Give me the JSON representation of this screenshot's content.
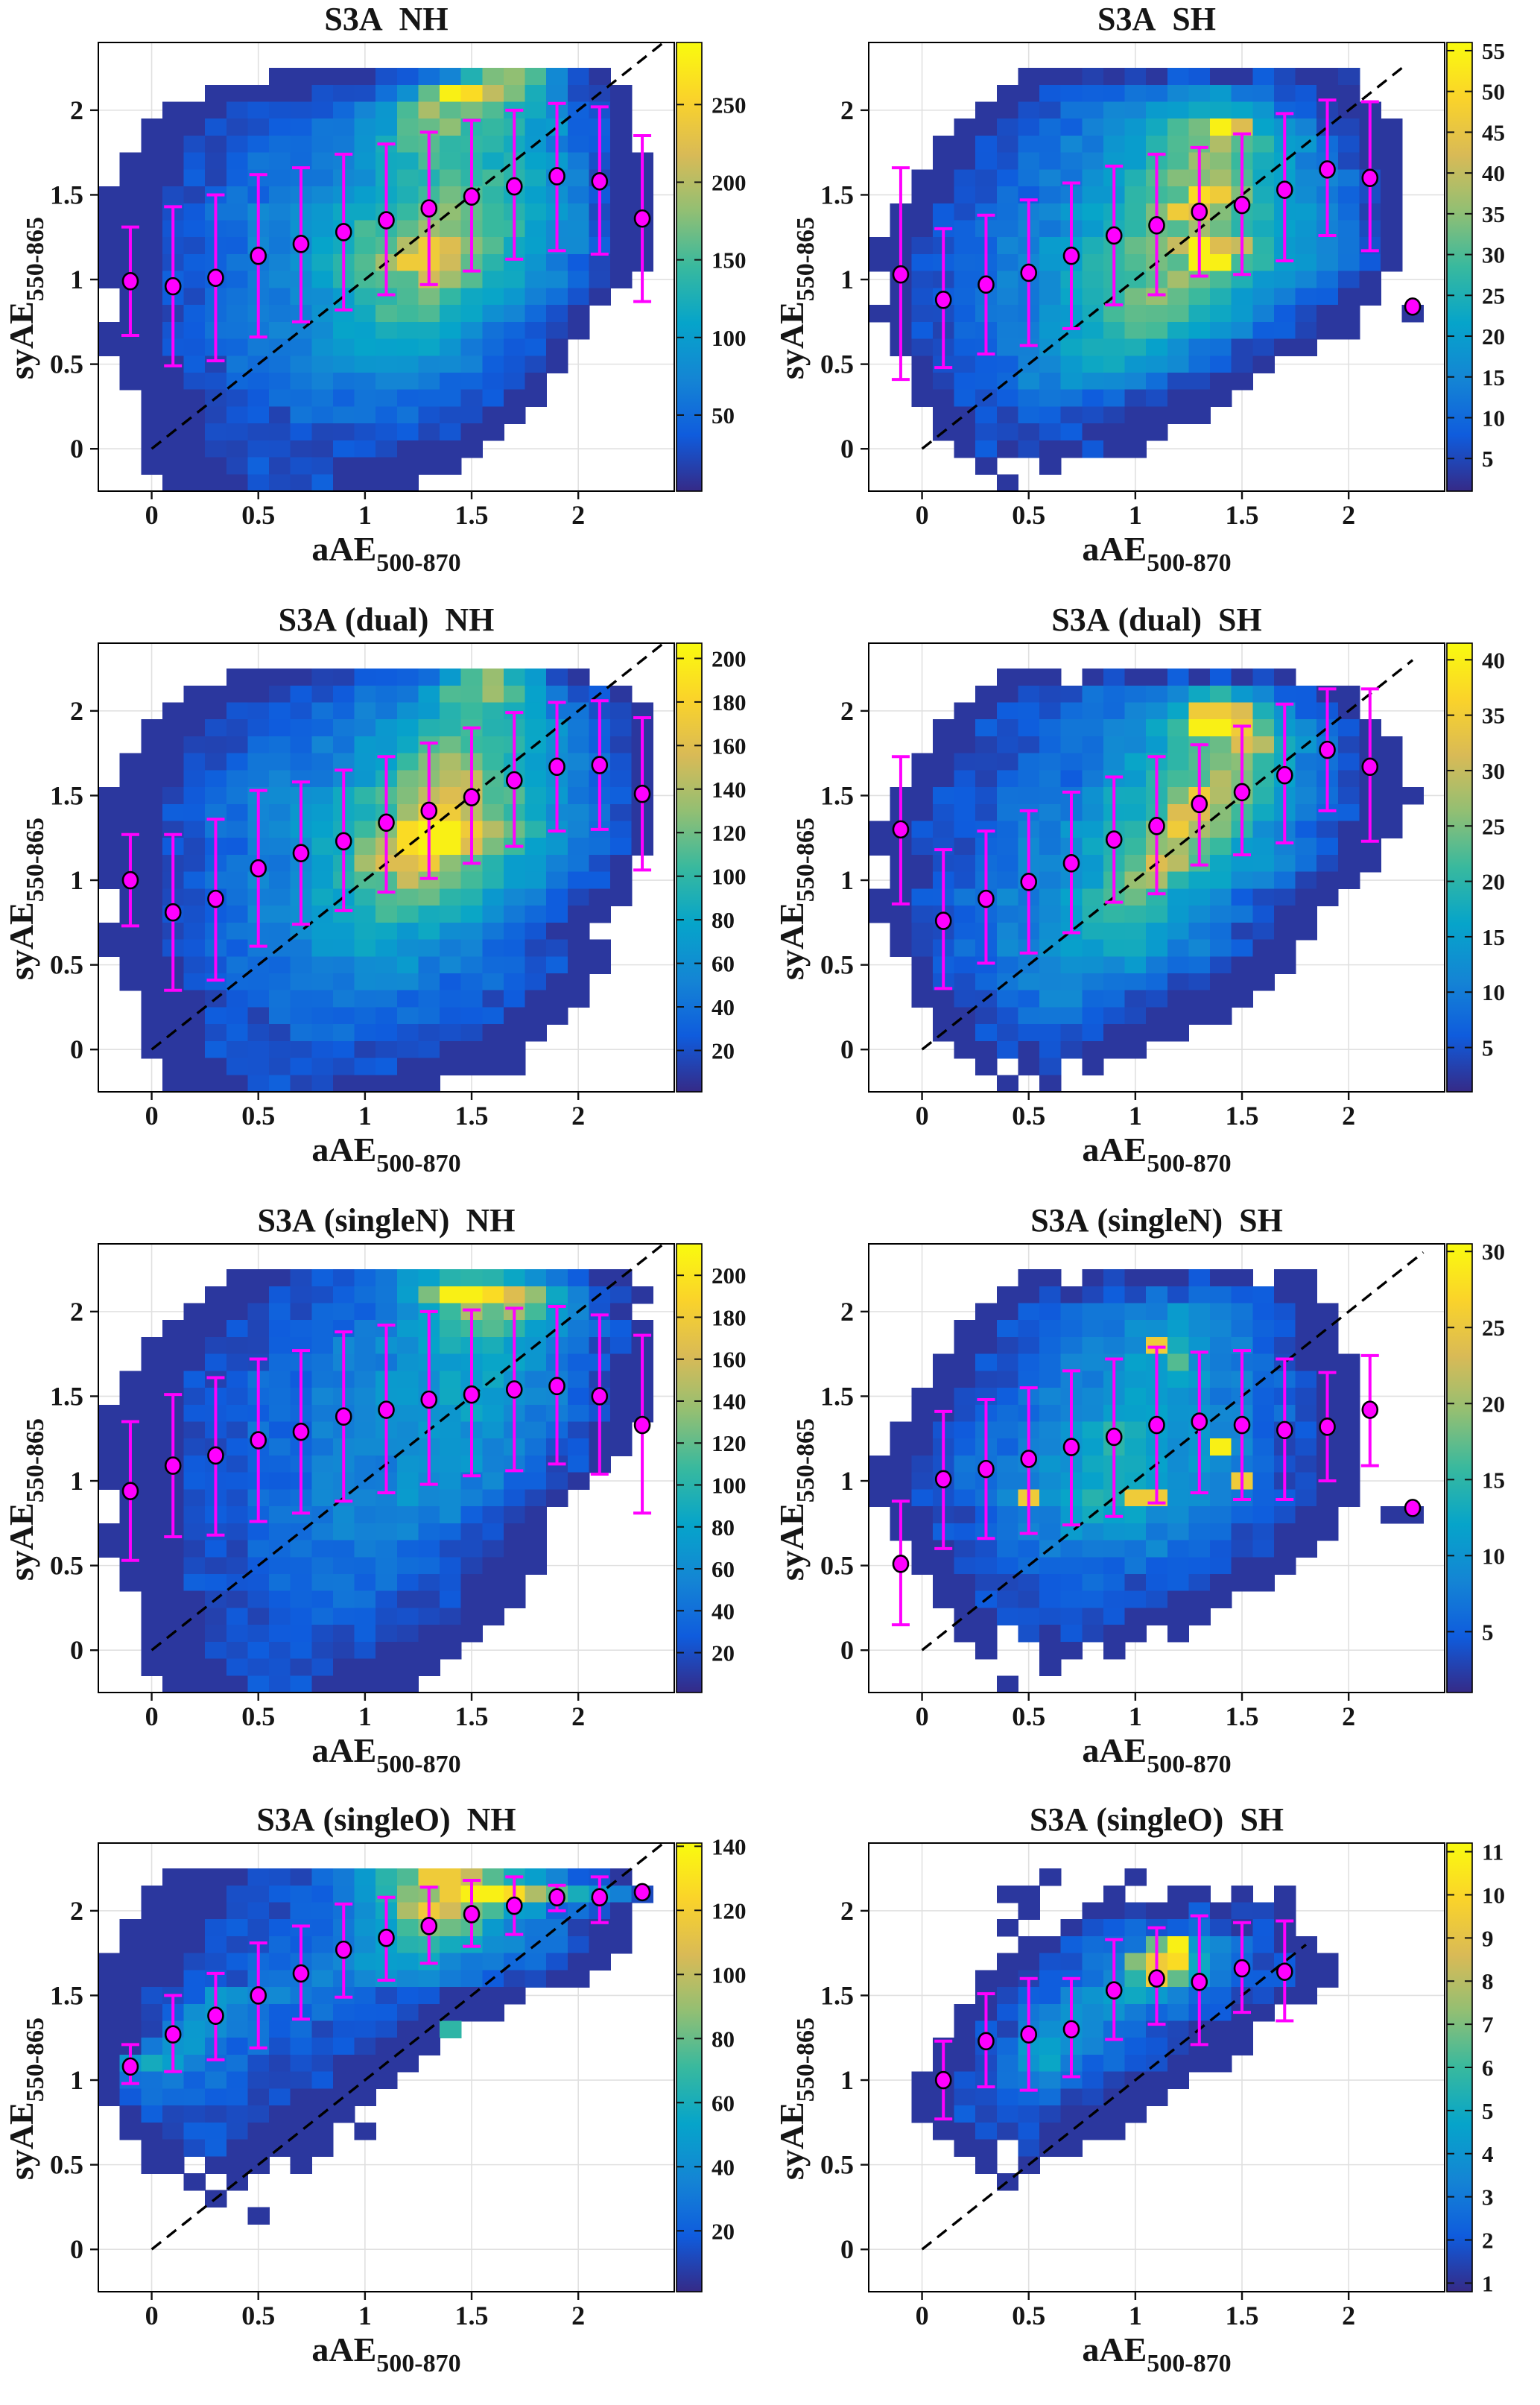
{
  "figure": {
    "background": "#ffffff",
    "xlabel": {
      "main": "aAE",
      "sub": "500-870"
    },
    "ylabel": {
      "main": "syAE",
      "sub": "550-865"
    },
    "xticks": [
      0,
      0.5,
      1,
      1.5,
      2
    ],
    "yticks": [
      0,
      0.5,
      1,
      1.5,
      2
    ],
    "xlim": [
      -0.25,
      2.45
    ],
    "ylim": [
      -0.25,
      2.4
    ],
    "bin_size": 0.1,
    "colormap": "parula",
    "colors": {
      "errorbar": "#ff00ff",
      "identity_line": "#000000",
      "grid_line": "#e0e0e0",
      "text": "#151515",
      "marker_edge": "#000000"
    }
  },
  "chart_data": [
    {
      "type": "heatmap",
      "title": "S3A  NH",
      "colorbar": {
        "vmin": 1,
        "vmax": 290,
        "ticks": [
          50,
          100,
          150,
          200,
          250
        ]
      },
      "grid_x0": -0.25,
      "grid_y_top": 2.25,
      "grid": [
        "........11111223479a8521...",
        ".....11111222359feba74221..",
        "...111222223468a998764321..",
        "..11122223335689a88765321..",
        "..11222233345789887764321..",
        ".1112223334456788877654211.",
        ".1112233344556778887654211.",
        "11122333445566789987654211.",
        "1112233445667789a987654211.",
        "111223344566889aa988654211.",
        "11122334456789bdca97654211.",
        "1112233445689bddb986543211.",
        "111223344567899ba87654321..",
        ".11223344456789987654321...",
        ".1122334445678887654321....",
        "11122334445667776543221....",
        "1112233444556666543221.....",
        ".111223334455555443221.....",
        ".11122333444444433221......",
        "..1112223333333332211......",
        "..111222233333322211.......",
        "..11122222222222211........",
        "..1112222222221111.........",
        "..111122222111111..........",
        "...111122221111............"
      ],
      "errorbar": {
        "x": [
          -0.1,
          0.1,
          0.3,
          0.5,
          0.7,
          0.9,
          1.1,
          1.3,
          1.5,
          1.7,
          1.9,
          2.1,
          2.3
        ],
        "y": [
          0.99,
          0.96,
          1.01,
          1.14,
          1.21,
          1.28,
          1.35,
          1.42,
          1.49,
          1.55,
          1.61,
          1.58,
          1.36
        ],
        "lo": [
          0.67,
          0.49,
          0.52,
          0.66,
          0.75,
          0.82,
          0.91,
          0.97,
          1.05,
          1.12,
          1.17,
          1.15,
          0.87
        ],
        "hi": [
          1.31,
          1.43,
          1.5,
          1.62,
          1.66,
          1.74,
          1.8,
          1.87,
          1.94,
          2.0,
          2.04,
          2.02,
          1.85
        ]
      },
      "identity_line": [
        0,
        2.4
      ]
    },
    {
      "type": "heatmap",
      "title": "S3A  SH",
      "colorbar": {
        "vmin": 1,
        "vmax": 56,
        "ticks": [
          5,
          10,
          15,
          20,
          25,
          30,
          35,
          40,
          45,
          50,
          55
        ]
      },
      "grid_x0": -0.25,
      "grid_y_top": 2.25,
      "grid": [
        ".......1112121221122112....",
        "......11223343455432211....",
        ".....1122334456776533211...",
        "....112233455689fc6542211..",
        "...1122334456789b98653211..",
        "...112233445678aa87643211..",
        "..11223344567899a97654321..",
        "..1122334456789ed97654321..",
        ".112233445678adc987654321..",
        ".11223344567899a987654321..",
        "1122334456789abfcb8654321..",
        "112233445678999ff87654321..",
        ".1223344567889a987654321...",
        ".122334456789a9876543211...",
        "11223344567899876543211..1.",
        ".1223344566788765432211....",
        ".12233445677765432211......",
        "..12233445665543221........",
        "..1223344554432211.........",
        "..112233443322111..........",
        "...1122332221111...........",
        "...11222221111.............",
        "....121211211..............",
        ".....1..1..................",
        "......1...................."
      ],
      "errorbar": {
        "x": [
          -0.1,
          0.1,
          0.3,
          0.5,
          0.7,
          0.9,
          1.1,
          1.3,
          1.5,
          1.7,
          1.9,
          2.1,
          2.3
        ],
        "y": [
          1.03,
          0.88,
          0.97,
          1.04,
          1.14,
          1.26,
          1.32,
          1.4,
          1.44,
          1.53,
          1.65,
          1.6,
          0.84
        ],
        "lo": [
          0.41,
          0.48,
          0.56,
          0.61,
          0.71,
          0.85,
          0.91,
          1.02,
          1.03,
          1.11,
          1.26,
          1.17,
          0.84
        ],
        "hi": [
          1.66,
          1.3,
          1.38,
          1.47,
          1.57,
          1.67,
          1.74,
          1.78,
          1.86,
          1.98,
          2.06,
          2.05,
          0.84
        ]
      },
      "identity_line": [
        0,
        2.25
      ]
    },
    {
      "type": "heatmap",
      "title": "S3A (dual)  NH",
      "colorbar": {
        "vmin": 1,
        "vmax": 207,
        "ticks": [
          20,
          40,
          60,
          80,
          100,
          120,
          140,
          160,
          180,
          200
        ]
      },
      "grid_x0": -0.25,
      "grid_y_top": 2.25,
      "grid": [
        "......111122223368a7521....",
        "....11112222334689a864221..",
        "...11122223344567887643221.",
        "..111222333445678877654321.",
        "..112223334456789887654321.",
        ".111222333445689a987654321.",
        ".11122334445679abb97654321.",
        "111223344556789bcb98654321.",
        "11122334455678addb98654321.",
        "1112233445678aeffdb9754321.",
        "1112233445679beffca8654321.",
        "111223344567accda97654321..",
        "11122334456789ba987654321..",
        ".112233445667899876543211..",
        ".11223344556788776543211...",
        "11122334455677665543211....",
        "111223344455665544332211...",
        ".11122333444555444332211...",
        ".1112233344444443332211....",
        "..111223333444333322111....",
        "..11122233333333222111.....",
        "..1112222333322222111......",
        "..111222222222221111.......",
        "...11122222222111111.......",
        "...1111222211111..........."
      ],
      "errorbar": {
        "x": [
          -0.1,
          0.1,
          0.3,
          0.5,
          0.7,
          0.9,
          1.1,
          1.3,
          1.5,
          1.7,
          1.9,
          2.1,
          2.3
        ],
        "y": [
          1.0,
          0.81,
          0.89,
          1.07,
          1.16,
          1.23,
          1.34,
          1.41,
          1.49,
          1.59,
          1.67,
          1.68,
          1.51
        ],
        "lo": [
          0.73,
          0.35,
          0.41,
          0.61,
          0.74,
          0.82,
          0.93,
          1.01,
          1.1,
          1.2,
          1.29,
          1.3,
          1.06
        ],
        "hi": [
          1.27,
          1.27,
          1.36,
          1.53,
          1.58,
          1.65,
          1.73,
          1.81,
          1.9,
          1.99,
          2.05,
          2.06,
          1.96
        ]
      },
      "identity_line": [
        0,
        2.4
      ]
    },
    {
      "type": "heatmap",
      "title": "S3A (dual)  SH",
      "colorbar": {
        "vmin": 1,
        "vmax": 41.5,
        "ticks": [
          5,
          10,
          15,
          20,
          25,
          30,
          35,
          40
        ]
      },
      "grid_x0": -0.25,
      "grid_y_top": 2.25,
      "grid": [
        "......111.1211212121.......",
        ".....112223334577542211....",
        "....11222333456ddc75321....",
        "...112223334568ffd864321...",
        "...11222333456789cb753211..",
        "..112223334567899a8643211..",
        "..11222333456789ba8643211..",
        ".1122233445678adb975432111.",
        ".1122233445678cca86543211..",
        "11222334456789da975432111..",
        "1122233445678ab986543211...",
        ".112233445679cb976543211...",
        ".11223344568ab876543211....",
        "1122334456899765432211.....",
        "112233445678876543211......",
        ".12233445677765432211......",
        ".1223344566665443211.......",
        "..122334455554332111.......",
        "..12233444443322111........",
        "..1122334433221111.........",
        "...11223333221111..........",
        "...112222221111............",
        "....112122111..............",
        ".....1.12.1................",
        "......1.1.................."
      ],
      "errorbar": {
        "x": [
          -0.1,
          0.1,
          0.3,
          0.5,
          0.7,
          0.9,
          1.1,
          1.3,
          1.5,
          1.7,
          1.9,
          2.1
        ],
        "y": [
          1.3,
          0.76,
          0.89,
          0.99,
          1.1,
          1.24,
          1.32,
          1.45,
          1.52,
          1.62,
          1.77,
          1.67
        ],
        "lo": [
          0.86,
          0.36,
          0.51,
          0.57,
          0.69,
          0.87,
          0.92,
          1.09,
          1.15,
          1.22,
          1.41,
          1.23
        ],
        "hi": [
          1.73,
          1.18,
          1.29,
          1.41,
          1.52,
          1.61,
          1.73,
          1.8,
          1.91,
          2.04,
          2.13,
          2.13
        ]
      },
      "identity_line": [
        0,
        2.3
      ]
    },
    {
      "type": "heatmap",
      "title": "S3A (singleN)  NH",
      "colorbar": {
        "vmin": 1,
        "vmax": 215,
        "ticks": [
          20,
          40,
          60,
          80,
          100,
          120,
          140,
          160,
          180,
          200
        ]
      },
      "grid_x0": -0.25,
      "grid_y_top": 2.25,
      "grid": [
        "......1112223456887653211..",
        ".....11122233469ffeca74221.",
        "....1112223334568a9a86421..",
        "...11122233344567887654321.",
        "..111222333445567776543221.",
        "..111222333444556666543211.",
        ".1112223334445556665443211.",
        ".1112223334445556655443211.",
        "11112223334445555655443211.",
        "1111222333444555555443211..",
        "1111222333444555554432211..",
        "111122233344445555443221...",
        "11112223334444555443221....",
        ".111222333444455443221.....",
        ".11122233344444443221......",
        "111122233344444332211......",
        "111122233333443322211......",
        ".11122223333333322111......",
        ".1112222333333222111.......",
        "..111222233332222111.......",
        "..11122223333222211........",
        "..1112222222222111.........",
        "..111222222221111..........",
        "..11112222211111...........",
        "...111122211111............"
      ],
      "errorbar": {
        "x": [
          -0.1,
          0.1,
          0.3,
          0.5,
          0.7,
          0.9,
          1.1,
          1.3,
          1.5,
          1.7,
          1.9,
          2.1,
          2.3
        ],
        "y": [
          0.94,
          1.09,
          1.15,
          1.24,
          1.29,
          1.38,
          1.42,
          1.48,
          1.51,
          1.54,
          1.56,
          1.5,
          1.33
        ],
        "lo": [
          0.53,
          0.67,
          0.68,
          0.76,
          0.81,
          0.88,
          0.93,
          0.98,
          1.03,
          1.06,
          1.1,
          1.04,
          0.81
        ],
        "hi": [
          1.35,
          1.51,
          1.61,
          1.72,
          1.77,
          1.88,
          1.92,
          2.0,
          2.01,
          2.02,
          2.03,
          1.98,
          1.86
        ]
      },
      "identity_line": [
        0,
        2.4
      ]
    },
    {
      "type": "heatmap",
      "title": "S3A (singleN)  SH",
      "colorbar": {
        "vmin": 1,
        "vmax": 30.5,
        "ticks": [
          5,
          10,
          15,
          20,
          25,
          30
        ]
      },
      "grid_x0": -0.25,
      "grid_y_top": 2.25,
      "grid": [
        ".......11.12111211.11......",
        "......112122232332211......",
        ".....11223334454433211.....",
        "....112233445565433211.....",
        "....112233445d75443211.....",
        "...11223344566854432111....",
        "...11223344556654433211....",
        "..112233445566554432211....",
        "..112233445666554433211....",
        ".1122334456776554432211....",
        ".112233445677655f432211....",
        "11223344556776554432211....",
        "11223344556776554d32211....",
        "1122334d5677dd554432211....",
        ".112233445666554432211..11.",
        ".112233445555443322111.....",
        "..1122334444443322211......",
        "..112233333333222111.......",
        "...1122233332222111........",
        "...11222233222111..........",
        "....112222221111...........",
        "....11.212211.1............",
        ".....1..11.1...............",
        "........1..................",
        "......1...................."
      ],
      "errorbar": {
        "x": [
          -0.1,
          0.1,
          0.3,
          0.5,
          0.7,
          0.9,
          1.1,
          1.3,
          1.5,
          1.7,
          1.9,
          2.1,
          2.3
        ],
        "y": [
          0.51,
          1.01,
          1.07,
          1.13,
          1.2,
          1.26,
          1.33,
          1.35,
          1.33,
          1.3,
          1.32,
          1.42,
          0.84
        ],
        "lo": [
          0.15,
          0.6,
          0.66,
          0.69,
          0.74,
          0.79,
          0.87,
          0.93,
          0.89,
          0.89,
          1.0,
          1.09,
          0.84
        ],
        "hi": [
          0.88,
          1.41,
          1.48,
          1.55,
          1.65,
          1.72,
          1.79,
          1.76,
          1.77,
          1.72,
          1.64,
          1.74,
          0.84
        ]
      },
      "identity_line": [
        0,
        2.35
      ]
    },
    {
      "type": "heatmap",
      "title": "S3A (singleO)  NH",
      "colorbar": {
        "vmin": 1,
        "vmax": 141,
        "ticks": [
          20,
          40,
          60,
          80,
          100,
          120,
          140
        ]
      },
      "grid_x0": -0.25,
      "grid_y_top": 2.25,
      "grid": [
        "...111122234579ddb9764321..",
        "..1111222334679adffeb97542.",
        "..111122233457adb98653321..",
        ".11112223334568a986443211..",
        ".111122233345678765443211..",
        "111122233344566654433211...",
        "11112223334455554332211....",
        "11223554443332221111.......",
        "1123554433322221111........",
        "11245543332222117..........",
        "1145543322222111...........",
        "157643322221111............",
        "13443332222111.............",
        "1233322221111..............",
        ".12222221111...............",
        ".1122221111.1..............",
        "..112211111................",
        "..11.111.1.................",
        "....1.1....................",
        ".....1.....................",
        ".......1...................",
        "...........................",
        "...........................",
        "...........................",
        "..........................."
      ],
      "errorbar": {
        "x": [
          -0.1,
          0.1,
          0.3,
          0.5,
          0.7,
          0.9,
          1.1,
          1.3,
          1.5,
          1.7,
          1.9,
          2.1,
          2.3
        ],
        "y": [
          1.08,
          1.27,
          1.38,
          1.5,
          1.63,
          1.77,
          1.84,
          1.91,
          1.98,
          2.03,
          2.08,
          2.08,
          2.11
        ],
        "lo": [
          0.98,
          1.05,
          1.12,
          1.19,
          1.36,
          1.49,
          1.59,
          1.69,
          1.79,
          1.86,
          2.0,
          1.93,
          2.11
        ],
        "hi": [
          1.21,
          1.5,
          1.63,
          1.81,
          1.91,
          2.04,
          2.08,
          2.14,
          2.18,
          2.2,
          2.15,
          2.2,
          2.11
        ]
      },
      "identity_line": [
        0,
        2.4
      ]
    },
    {
      "type": "heatmap",
      "title": "S3A (singleO)  SH",
      "colorbar": {
        "vmin": 0.8,
        "vmax": 11.2,
        "ticks": [
          1,
          2,
          3,
          4,
          5,
          6,
          7,
          8,
          9,
          10,
          11
        ]
      },
      "grid_x0": -0.25,
      "grid_y_top": 2.25,
      "grid": [
        "........1...1..............",
        "......11...1..11.1.1.......",
        ".......1..1121121221.......",
        "......1..12232332121.......",
        ".......1123349f653211......",
        "......112234ade7432211.....",
        ".....11223358d96433211.....",
        ".....1223456654332211......",
        "....112345554332211........",
        "....12245543322111.........",
        "...112356543322111.........",
        "...11245643322111..........",
        "..1122344322111............",
        "..112233322111.............",
        "..11222221111..............",
        "...112221111...............",
        "....11.211.................",
        ".....1.1...................",
        "......1....................",
        "...........................",
        "...........................",
        "...........................",
        "...........................",
        "...........................",
        "..........................."
      ],
      "errorbar": {
        "x": [
          0.1,
          0.3,
          0.5,
          0.7,
          0.9,
          1.1,
          1.3,
          1.5,
          1.7
        ],
        "y": [
          1.0,
          1.23,
          1.27,
          1.3,
          1.53,
          1.6,
          1.58,
          1.66,
          1.64
        ],
        "lo": [
          0.77,
          0.96,
          0.94,
          1.02,
          1.24,
          1.33,
          1.21,
          1.4,
          1.35
        ],
        "hi": [
          1.23,
          1.51,
          1.6,
          1.6,
          1.83,
          1.9,
          1.97,
          1.93,
          1.94
        ]
      },
      "identity_line": [
        0,
        1.8
      ]
    }
  ]
}
